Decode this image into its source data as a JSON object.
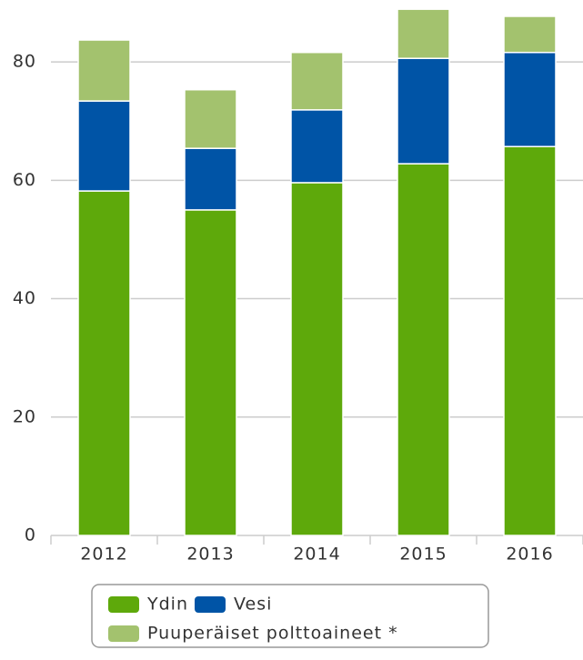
{
  "chart_data": {
    "type": "bar",
    "stacked": true,
    "categories": [
      "2012",
      "2013",
      "2014",
      "2015",
      "2016"
    ],
    "series": [
      {
        "name": "Ydin",
        "color": "#5ea90b",
        "values": [
          58.2,
          55.0,
          59.6,
          62.8,
          65.7
        ]
      },
      {
        "name": "Vesi",
        "color": "#0054a6",
        "values": [
          15.2,
          10.4,
          12.3,
          17.8,
          15.9
        ]
      },
      {
        "name": "Puuperäiset polttoaineet *",
        "color": "#a3c26e",
        "values": [
          10.3,
          9.9,
          9.7,
          8.3,
          6.1
        ]
      }
    ],
    "ylim": [
      0,
      90
    ],
    "yticks": [
      0,
      20,
      40,
      60,
      80
    ],
    "grid": true,
    "legend": "bottom"
  }
}
